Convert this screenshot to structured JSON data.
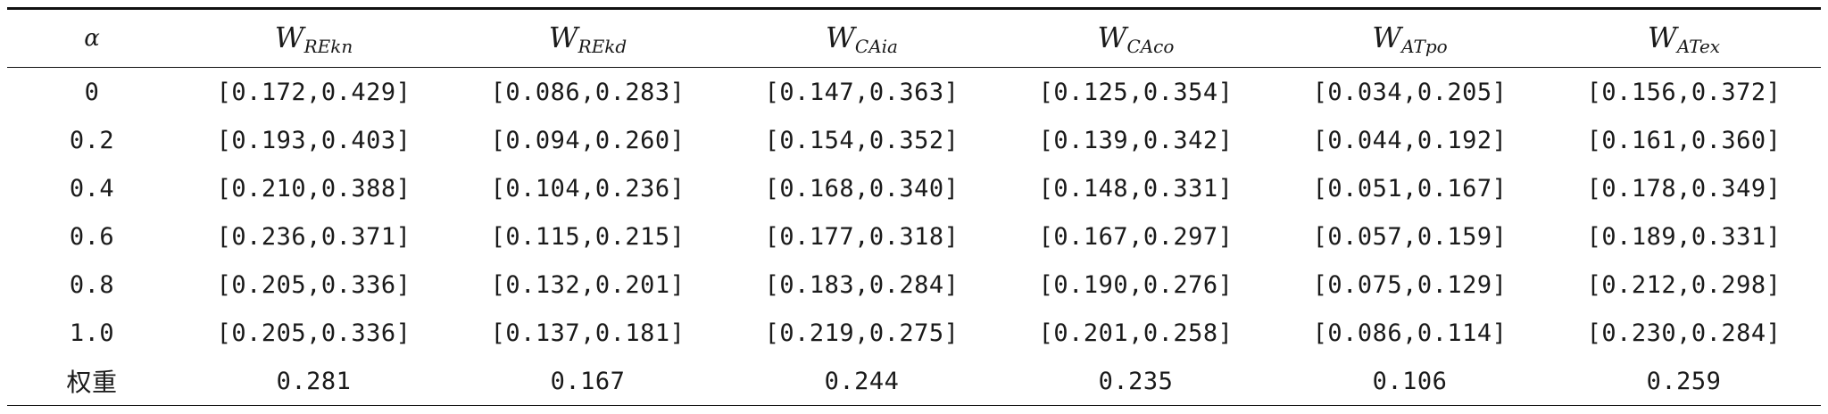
{
  "table": {
    "header": {
      "alpha": "α",
      "columns": [
        {
          "main": "W",
          "sub": "REkn"
        },
        {
          "main": "W",
          "sub": "REkd"
        },
        {
          "main": "W",
          "sub": "CAia"
        },
        {
          "main": "W",
          "sub": "CAco"
        },
        {
          "main": "W",
          "sub": "ATpo"
        },
        {
          "main": "W",
          "sub": "ATex"
        }
      ]
    },
    "rows": [
      {
        "alpha": "0",
        "cells": [
          "[0.172,0.429]",
          "[0.086,0.283]",
          "[0.147,0.363]",
          "[0.125,0.354]",
          "[0.034,0.205]",
          "[0.156,0.372]"
        ]
      },
      {
        "alpha": "0.2",
        "cells": [
          "[0.193,0.403]",
          "[0.094,0.260]",
          "[0.154,0.352]",
          "[0.139,0.342]",
          "[0.044,0.192]",
          "[0.161,0.360]"
        ]
      },
      {
        "alpha": "0.4",
        "cells": [
          "[0.210,0.388]",
          "[0.104,0.236]",
          "[0.168,0.340]",
          "[0.148,0.331]",
          "[0.051,0.167]",
          "[0.178,0.349]"
        ]
      },
      {
        "alpha": "0.6",
        "cells": [
          "[0.236,0.371]",
          "[0.115,0.215]",
          "[0.177,0.318]",
          "[0.167,0.297]",
          "[0.057,0.159]",
          "[0.189,0.331]"
        ]
      },
      {
        "alpha": "0.8",
        "cells": [
          "[0.205,0.336]",
          "[0.132,0.201]",
          "[0.183,0.284]",
          "[0.190,0.276]",
          "[0.075,0.129]",
          "[0.212,0.298]"
        ]
      },
      {
        "alpha": "1.0",
        "cells": [
          "[0.205,0.336]",
          "[0.137,0.181]",
          "[0.219,0.275]",
          "[0.201,0.258]",
          "[0.086,0.114]",
          "[0.230,0.284]"
        ]
      }
    ],
    "weight_row": {
      "label": "权重",
      "values": [
        "0.281",
        "0.167",
        "0.244",
        "0.235",
        "0.106",
        "0.259"
      ]
    }
  }
}
